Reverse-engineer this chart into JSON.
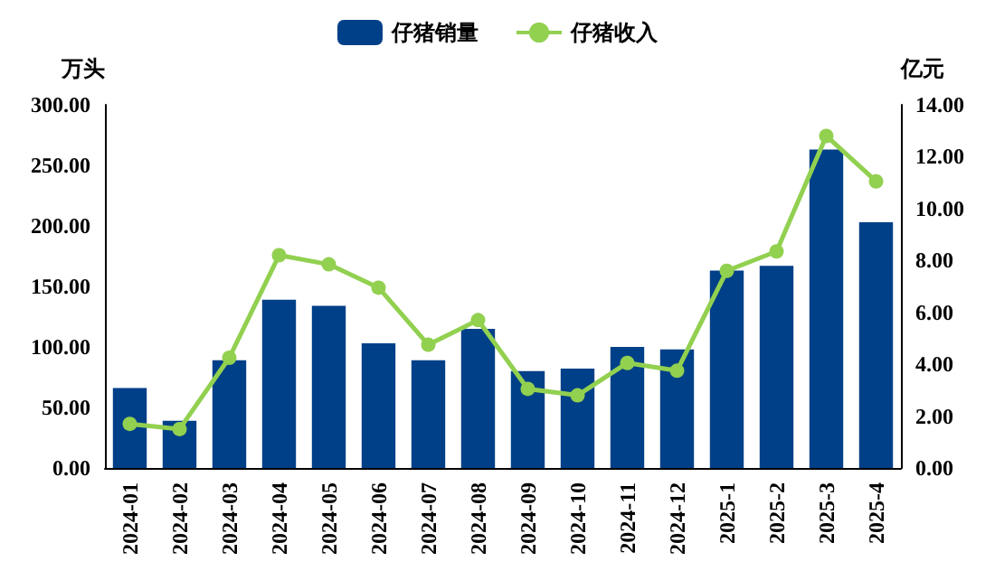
{
  "chart_data": {
    "type": "bar",
    "ylabel": "万头",
    "y2label": "亿元",
    "categories": [
      "2024-01",
      "2024-02",
      "2024-03",
      "2024-04",
      "2024-05",
      "2024-06",
      "2024-07",
      "2024-08",
      "2024-09",
      "2024-10",
      "2024-11",
      "2024-12",
      "2025-1",
      "2025-2",
      "2025-3",
      "2025-4"
    ],
    "series": [
      {
        "name": "仔猪销量",
        "color": "#004088",
        "values": [
          66,
          39,
          89,
          139,
          134,
          103,
          89,
          115,
          80,
          82,
          100,
          98,
          163,
          167,
          263,
          203
        ]
      },
      {
        "name": "仔猪收入",
        "type": "line",
        "axis": "y2",
        "color": "#92d050",
        "marker": "circle",
        "values": [
          1.7,
          1.5,
          4.25,
          8.2,
          7.85,
          6.95,
          4.75,
          5.7,
          3.05,
          2.8,
          4.05,
          3.75,
          7.6,
          8.35,
          12.8,
          11.05
        ]
      }
    ],
    "ylim": [
      0,
      300
    ],
    "yticks": [
      {
        "value": 0,
        "label": "0.00"
      },
      {
        "value": 50,
        "label": "50.00"
      },
      {
        "value": 100,
        "label": "100.00"
      },
      {
        "value": 150,
        "label": "150.00"
      },
      {
        "value": 200,
        "label": "200.00"
      },
      {
        "value": 250,
        "label": "250.00"
      },
      {
        "value": 300,
        "label": "300.00"
      }
    ],
    "y2lim": [
      0,
      14
    ],
    "y2ticks": [
      {
        "value": 0,
        "label": "0.00"
      },
      {
        "value": 2,
        "label": "2.00"
      },
      {
        "value": 4,
        "label": "4.00"
      },
      {
        "value": 6,
        "label": "6.00"
      },
      {
        "value": 8,
        "label": "8.00"
      },
      {
        "value": 10,
        "label": "10.00"
      },
      {
        "value": 12,
        "label": "12.00"
      },
      {
        "value": 14,
        "label": "14.00"
      }
    ],
    "legend": "top",
    "grid": false
  }
}
